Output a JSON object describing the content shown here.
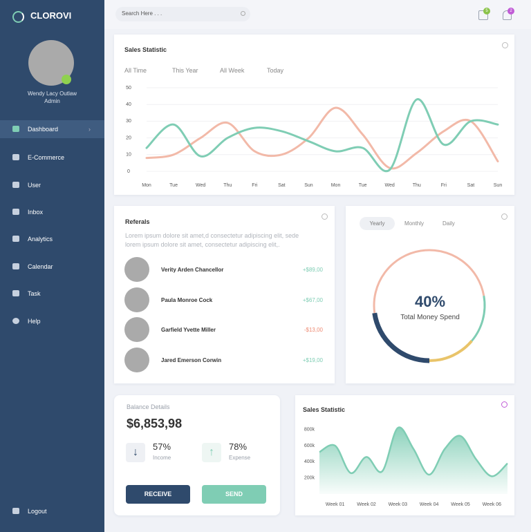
{
  "brand": "CLOROVI",
  "search_placeholder": "Search Here . . .",
  "notifications": {
    "calendar_badge": "5",
    "bell_badge": "2"
  },
  "profile": {
    "name": "Wendy Lacy Outlaw",
    "role": "Admin"
  },
  "nav": [
    "Dashboard",
    "E-Commerce",
    "User",
    "Inbox",
    "Analytics",
    "Calendar",
    "Task",
    "Help"
  ],
  "logout": "Logout",
  "sales_statistic": {
    "type": "line",
    "title": "Sales Statistic",
    "tabs": [
      "All Time",
      "This Year",
      "All Week",
      "Today"
    ],
    "categories": [
      "Mon",
      "Tue",
      "Wed",
      "Thu",
      "Fri",
      "Sat",
      "Sun",
      "Mon",
      "Tue",
      "Wed",
      "Thu",
      "Fri",
      "Sat",
      "Sun"
    ],
    "ylim": [
      0,
      50
    ],
    "yticks": [
      0,
      10,
      20,
      30,
      40,
      50
    ],
    "grid": true,
    "series": [
      {
        "color": "#f2b9a8",
        "values": [
          8,
          10,
          20,
          29,
          12,
          10,
          20,
          38,
          22,
          2,
          11,
          24,
          30,
          6
        ]
      },
      {
        "color": "#7fcdb4",
        "values": [
          14,
          28,
          9,
          20,
          26,
          24,
          18,
          12,
          14,
          1,
          43,
          16,
          30,
          28
        ]
      }
    ]
  },
  "referrals": {
    "title": "Referals",
    "description": "Lorem ipsum dolore sit amet,d consectetur adipiscing elit, sede lorem ipsum dolore sit amet, consectetur adipiscing elit,.",
    "people": [
      {
        "name": "Verity Arden Chancellor",
        "amount": "+$89,00"
      },
      {
        "name": "Paula Monroe Cock",
        "amount": "+$67,00"
      },
      {
        "name": "Garfield Yvette Miller",
        "amount": "-$13,00"
      },
      {
        "name": "Jared Emerson Corwin",
        "amount": "+$19,00"
      }
    ]
  },
  "money_spend": {
    "tabs": [
      "Yearly",
      "Monthly",
      "Daily"
    ],
    "percent": "40%",
    "label": "Total Money Spend"
  },
  "balance": {
    "title": "Balance Details",
    "amount": "$6,853,98",
    "income": {
      "percent": "57%",
      "label": "Income"
    },
    "expense": {
      "percent": "78%",
      "label": "Expense"
    },
    "buttons": [
      "RECEIVE",
      "SEND"
    ]
  },
  "sales_area": {
    "type": "area",
    "title": "Sales Statistic",
    "categories": [
      null,
      "Week 01",
      null,
      "Week 02",
      null,
      "Week 03",
      null,
      "Week 04",
      null,
      "Week 05",
      null,
      "Week 06",
      null
    ],
    "values": [
      520000,
      600000,
      260000,
      460000,
      280000,
      820000,
      560000,
      240000,
      560000,
      720000,
      430000,
      220000,
      380000
    ],
    "ylim": [
      0,
      900000
    ],
    "yticks": [
      {
        "value": 200000,
        "label": "200k"
      },
      {
        "value": 400000,
        "label": "400k"
      },
      {
        "value": 600000,
        "label": "600k"
      },
      {
        "value": 800000,
        "label": "800k"
      }
    ],
    "color": "#7fcdb4",
    "grid": false
  }
}
